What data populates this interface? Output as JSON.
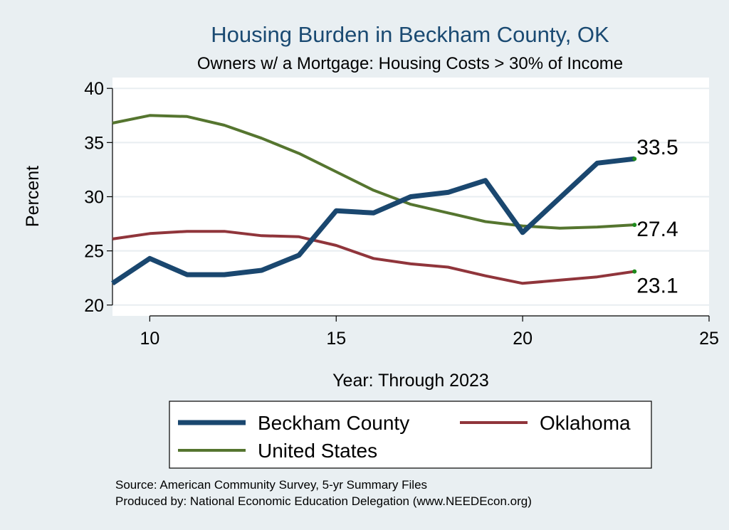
{
  "chart_data": {
    "type": "line",
    "title": "Housing Burden in Beckham County, OK",
    "subtitle": "Owners w/ a Mortgage: Housing Costs > 30% of Income",
    "xlabel": "Year: Through 2023",
    "ylabel": "Percent",
    "xlim": [
      9,
      25
    ],
    "ylim": [
      19,
      41
    ],
    "xticks": [
      10,
      15,
      20,
      25
    ],
    "yticks": [
      20,
      25,
      30,
      35,
      40
    ],
    "series": [
      {
        "name": "Beckham County",
        "color": "#1a476f",
        "x": [
          9,
          10,
          11,
          12,
          13,
          14,
          15,
          16,
          17,
          18,
          19,
          20,
          21,
          22,
          23
        ],
        "values": [
          22.0,
          24.3,
          22.8,
          22.8,
          23.2,
          24.6,
          28.7,
          28.5,
          30.0,
          30.4,
          31.5,
          26.7,
          29.9,
          33.1,
          33.5
        ],
        "end_label": "33.5"
      },
      {
        "name": "Oklahoma",
        "color": "#90353b",
        "x": [
          9,
          10,
          11,
          12,
          13,
          14,
          15,
          16,
          17,
          18,
          19,
          20,
          21,
          22,
          23
        ],
        "values": [
          26.1,
          26.6,
          26.8,
          26.8,
          26.4,
          26.3,
          25.5,
          24.3,
          23.8,
          23.5,
          22.7,
          22.0,
          22.3,
          22.6,
          23.1
        ],
        "end_label": "23.1"
      },
      {
        "name": "United States",
        "color": "#55752f",
        "x": [
          9,
          10,
          11,
          12,
          13,
          14,
          15,
          16,
          17,
          18,
          19,
          20,
          21,
          22,
          23
        ],
        "values": [
          36.8,
          37.5,
          37.4,
          36.6,
          35.4,
          34.0,
          32.3,
          30.6,
          29.3,
          28.5,
          27.7,
          27.3,
          27.1,
          27.2,
          27.4
        ],
        "end_label": "27.4"
      }
    ],
    "legend": {
      "position": "bottom",
      "entries": [
        "Beckham County",
        "Oklahoma",
        "United States"
      ]
    },
    "source_lines": [
      "Source: American Community Survey, 5-yr Summary Files",
      "Produced by: National Economic Education Delegation (www.NEEDEcon.org)"
    ]
  }
}
